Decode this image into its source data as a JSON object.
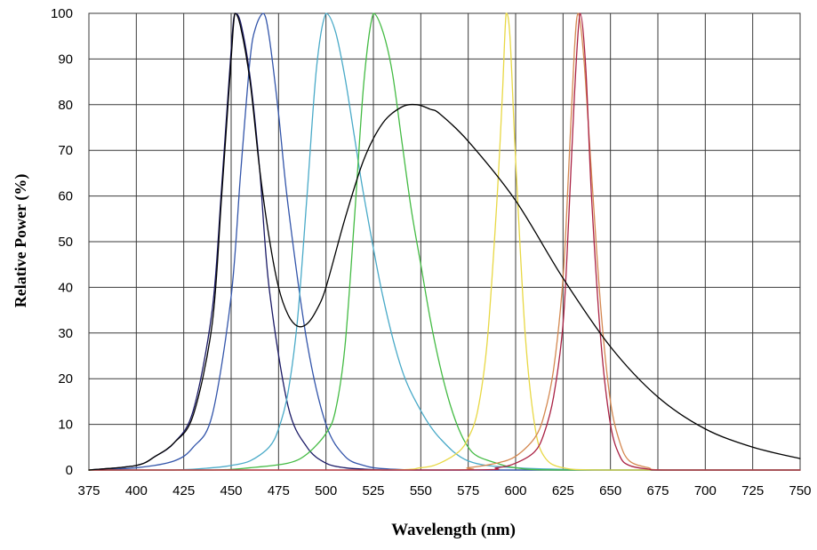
{
  "chart_data": {
    "type": "line",
    "title": "",
    "xlabel": "Wavelength (nm)",
    "ylabel": "Relative Power (%)",
    "xlim": [
      375,
      750
    ],
    "ylim": [
      0,
      100
    ],
    "x_ticks": [
      375,
      400,
      425,
      450,
      475,
      500,
      525,
      550,
      575,
      600,
      625,
      650,
      675,
      700,
      725,
      750
    ],
    "y_ticks": [
      0,
      10,
      20,
      30,
      40,
      50,
      60,
      70,
      80,
      90,
      100
    ],
    "grid": true,
    "legend": "none",
    "series": [
      {
        "color": "#1a1a66",
        "x": [
          375,
          400,
          410,
          420,
          430,
          440,
          445,
          450,
          452,
          455,
          460,
          465,
          470,
          480,
          490,
          500,
          510,
          520,
          530,
          550,
          600,
          650,
          700,
          750
        ],
        "y": [
          0,
          1,
          3,
          6,
          13,
          35,
          62,
          92,
          100,
          98,
          86,
          66,
          40,
          14,
          5,
          1.5,
          0.5,
          0.2,
          0,
          0,
          0,
          0,
          0,
          0
        ]
      },
      {
        "color": "#3355aa",
        "x": [
          375,
          400,
          420,
          430,
          440,
          450,
          455,
          460,
          463,
          467,
          470,
          475,
          480,
          490,
          500,
          510,
          520,
          530,
          550,
          600,
          750
        ],
        "y": [
          0,
          0.5,
          2,
          5,
          12,
          38,
          65,
          90,
          97,
          100,
          95,
          78,
          58,
          28,
          10,
          3,
          1,
          0.3,
          0,
          0,
          0
        ]
      },
      {
        "color": "#4aaac8",
        "x": [
          375,
          420,
          440,
          450,
          460,
          470,
          475,
          480,
          485,
          490,
          495,
          500,
          505,
          510,
          515,
          520,
          530,
          540,
          550,
          560,
          575,
          600,
          650,
          750
        ],
        "y": [
          0,
          0,
          0.5,
          1,
          2,
          5,
          9,
          17,
          33,
          60,
          88,
          100,
          96,
          86,
          73,
          60,
          38,
          22,
          13,
          7,
          2,
          0.5,
          0,
          0
        ]
      },
      {
        "color": "#44bb44",
        "x": [
          375,
          440,
          460,
          480,
          490,
          500,
          505,
          510,
          515,
          520,
          525,
          530,
          535,
          540,
          545,
          550,
          555,
          560,
          565,
          570,
          575,
          580,
          590,
          600,
          625,
          750
        ],
        "y": [
          0,
          0,
          0.5,
          1.5,
          3.5,
          8,
          13,
          27,
          55,
          85,
          100,
          96,
          87,
          72,
          57,
          45,
          33,
          23,
          15,
          9,
          5,
          3,
          1.5,
          0.5,
          0,
          0
        ]
      },
      {
        "color": "#e8d844",
        "x": [
          375,
          525,
          550,
          560,
          570,
          575,
          580,
          585,
          590,
          593,
          595,
          597,
          600,
          605,
          610,
          615,
          625,
          650,
          750
        ],
        "y": [
          0,
          0,
          0.5,
          1.5,
          4,
          7,
          13,
          28,
          58,
          82,
          100,
          95,
          68,
          30,
          10,
          3,
          0.5,
          0,
          0
        ]
      },
      {
        "color": "#d48850",
        "x": [
          375,
          560,
          575,
          590,
          600,
          610,
          615,
          620,
          625,
          628,
          631,
          633,
          636,
          640,
          645,
          650,
          655,
          660,
          670,
          680,
          750
        ],
        "y": [
          0,
          0,
          0.5,
          1.5,
          3,
          7,
          12,
          22,
          42,
          66,
          92,
          100,
          90,
          65,
          35,
          15,
          6,
          2,
          0.5,
          0,
          0
        ]
      },
      {
        "color": "#aa2244",
        "x": [
          375,
          570,
          590,
          600,
          610,
          615,
          620,
          625,
          628,
          631,
          634,
          637,
          640,
          645,
          650,
          655,
          660,
          670,
          680,
          750
        ],
        "y": [
          0,
          0,
          0.5,
          1.5,
          4,
          8,
          16,
          32,
          55,
          82,
          100,
          88,
          60,
          28,
          10,
          3,
          1,
          0.2,
          0,
          0
        ]
      },
      {
        "color": "#000000",
        "x": [
          375,
          400,
          410,
          420,
          430,
          440,
          445,
          450,
          452,
          455,
          460,
          465,
          470,
          475,
          480,
          485,
          490,
          495,
          500,
          510,
          520,
          530,
          540,
          548,
          555,
          560,
          575,
          600,
          625,
          650,
          675,
          700,
          725,
          750
        ],
        "y": [
          0,
          1,
          3,
          6,
          12,
          32,
          60,
          90,
          100,
          97,
          85,
          66,
          51,
          40,
          34,
          31.5,
          32,
          35,
          40,
          55,
          68,
          76,
          79.5,
          80,
          79,
          78,
          72,
          59,
          42,
          27,
          16,
          9,
          5,
          2.5
        ]
      }
    ]
  }
}
